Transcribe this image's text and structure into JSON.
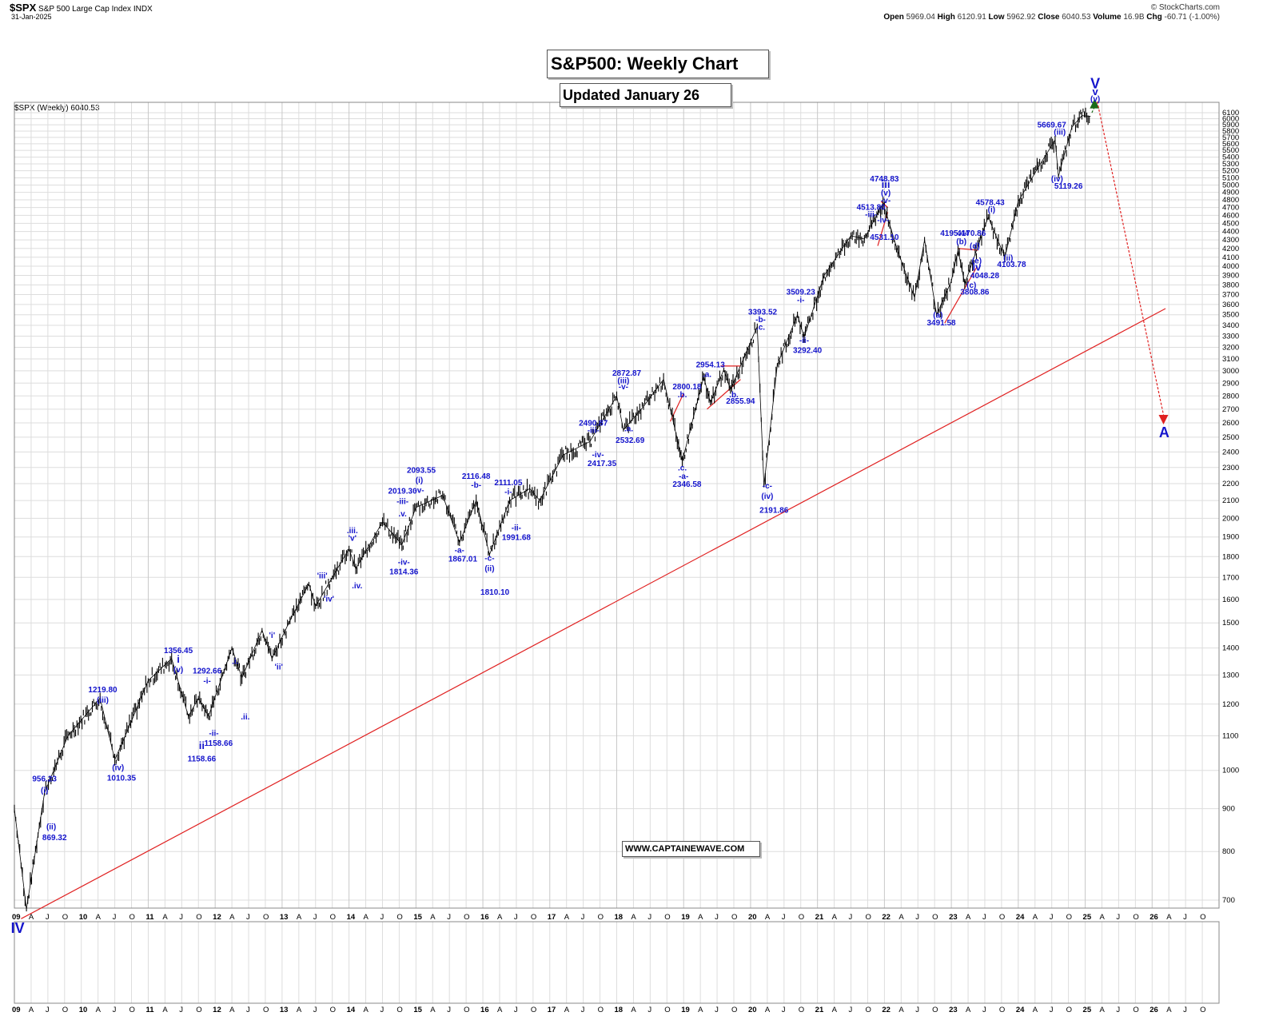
{
  "header": {
    "symbol": "$SPX",
    "name": "S&P 500 Large Cap Index",
    "exchange": "INDX",
    "date": "31-Jan-2025",
    "watermark": "© StockCharts.com",
    "quote": [
      {
        "label": "Open",
        "value": "5969.04"
      },
      {
        "label": "High",
        "value": "6120.91"
      },
      {
        "label": "Low",
        "value": "5962.92"
      },
      {
        "label": "Close",
        "value": "6040.53"
      },
      {
        "label": "Volume",
        "value": "16.9B"
      },
      {
        "label": "Chg",
        "value": "-60.71 (-1.00%)"
      }
    ],
    "series_label": "$SPX (Weekly) 6040.53"
  },
  "boxes": {
    "title": "S&P500: Weekly Chart",
    "updated": "Updated January 26",
    "website": "WWW.CAPTAINEWAVE.COM"
  },
  "colors": {
    "price": "#000000",
    "wave_label": "#1414cc",
    "trendline": "#e02020",
    "arrow_up": "#1a6b1a",
    "arrow_down": "#e02020",
    "grid": "#dddddd"
  },
  "chart_data": {
    "type": "line",
    "x_scale": "date",
    "y_scale": "log",
    "ylim": [
      650,
      6200
    ],
    "y_ticks": [
      700,
      800,
      900,
      1000,
      1100,
      1200,
      1300,
      1400,
      1500,
      1600,
      1700,
      1800,
      1900,
      2000,
      2100,
      2200,
      2300,
      2400,
      2500,
      2600,
      2700,
      2800,
      2900,
      3000,
      3100,
      3200,
      3300,
      3400,
      3500,
      3600,
      3700,
      3800,
      3900,
      4000,
      4100,
      4200,
      4300,
      4400,
      4500,
      4600,
      4700,
      4800,
      4900,
      5000,
      5100,
      5200,
      5300,
      5400,
      5500,
      5600,
      5700,
      5800,
      5900,
      6000,
      6100
    ],
    "x_ticks": [
      "09",
      "A",
      "J",
      "O",
      "10",
      "A",
      "J",
      "O",
      "11",
      "A",
      "J",
      "O",
      "12",
      "A",
      "J",
      "O",
      "13",
      "A",
      "J",
      "O",
      "14",
      "A",
      "J",
      "O",
      "15",
      "A",
      "J",
      "O",
      "16",
      "A",
      "J",
      "O",
      "17",
      "A",
      "J",
      "O",
      "18",
      "A",
      "J",
      "O",
      "19",
      "A",
      "J",
      "O",
      "20",
      "A",
      "J",
      "O",
      "21",
      "A",
      "J",
      "O",
      "22",
      "A",
      "J",
      "O",
      "23",
      "A",
      "J",
      "O",
      "24",
      "A",
      "J",
      "O",
      "25",
      "A",
      "J",
      "O",
      "26",
      "A",
      "J",
      "O"
    ],
    "series": [
      {
        "values": [
          [
            "2009.00",
            900
          ],
          [
            "2009.18",
            683
          ],
          [
            "2009.45",
            940
          ],
          [
            "2009.80",
            1100
          ],
          [
            "2010.28",
            1220
          ],
          [
            "2010.50",
            1030
          ],
          [
            "2010.70",
            1120
          ],
          [
            "2011.00",
            1280
          ],
          [
            "2011.35",
            1360
          ],
          [
            "2011.60",
            1160
          ],
          [
            "2011.75",
            1220
          ],
          [
            "2011.90",
            1160
          ],
          [
            "2012.25",
            1400
          ],
          [
            "2012.40",
            1290
          ],
          [
            "2012.70",
            1470
          ],
          [
            "2012.85",
            1360
          ],
          [
            "2013.10",
            1500
          ],
          [
            "2013.40",
            1670
          ],
          [
            "2013.50",
            1570
          ],
          [
            "2014.00",
            1840
          ],
          [
            "2014.10",
            1740
          ],
          [
            "2014.50",
            1980
          ],
          [
            "2014.79",
            1860
          ],
          [
            "2015.00",
            2060
          ],
          [
            "2015.40",
            2130
          ],
          [
            "2015.65",
            1870
          ],
          [
            "2015.90",
            2100
          ],
          [
            "2016.10",
            1810
          ],
          [
            "2016.40",
            2100
          ],
          [
            "2016.70",
            2170
          ],
          [
            "2016.85",
            2100
          ],
          [
            "2017.20",
            2380
          ],
          [
            "2017.60",
            2470
          ],
          [
            "2018.00",
            2800
          ],
          [
            "2018.10",
            2550
          ],
          [
            "2018.40",
            2720
          ],
          [
            "2018.70",
            2930
          ],
          [
            "2018.98",
            2340
          ],
          [
            "2019.30",
            2950
          ],
          [
            "2019.40",
            2750
          ],
          [
            "2019.60",
            3010
          ],
          [
            "2019.70",
            2850
          ],
          [
            "2020.10",
            3390
          ],
          [
            "2020.20",
            2190
          ],
          [
            "2020.40",
            3050
          ],
          [
            "2020.70",
            3500
          ],
          [
            "2020.80",
            3290
          ],
          [
            "2021.10",
            3900
          ],
          [
            "2021.50",
            4350
          ],
          [
            "2021.70",
            4310
          ],
          [
            "2021.98",
            4760
          ],
          [
            "2022.20",
            4170
          ],
          [
            "2022.45",
            3670
          ],
          [
            "2022.60",
            4300
          ],
          [
            "2022.78",
            3500
          ],
          [
            "2023.00",
            3840
          ],
          [
            "2023.10",
            4180
          ],
          [
            "2023.20",
            3810
          ],
          [
            "2023.55",
            4580
          ],
          [
            "2023.80",
            4100
          ],
          [
            "2024.00",
            4780
          ],
          [
            "2024.30",
            5250
          ],
          [
            "2024.55",
            5660
          ],
          [
            "2024.60",
            5120
          ],
          [
            "2024.80",
            5860
          ],
          [
            "2024.95",
            6050
          ],
          [
            "2025.08",
            6040
          ]
        ]
      }
    ],
    "annotations": [
      {
        "text": "IV",
        "x": 2009.05,
        "y": 640
      },
      {
        "text": "956.23",
        "x": 2009.45,
        "y": 970
      },
      {
        "text": "(i)",
        "x": 2009.45,
        "y": 940
      },
      {
        "text": "(ii)",
        "x": 2009.55,
        "y": 850
      },
      {
        "text": "869.32",
        "x": 2009.6,
        "y": 825
      },
      {
        "text": "1219.80",
        "x": 2010.32,
        "y": 1240
      },
      {
        "text": "(iii)",
        "x": 2010.32,
        "y": 1205
      },
      {
        "text": "(iv)",
        "x": 2010.55,
        "y": 1000
      },
      {
        "text": "1010.35",
        "x": 2010.6,
        "y": 972
      },
      {
        "text": "1356.45",
        "x": 2011.45,
        "y": 1380
      },
      {
        "text": "i",
        "x": 2011.45,
        "y": 1345
      },
      {
        "text": "(v)",
        "x": 2011.45,
        "y": 1310
      },
      {
        "text": "1292.66",
        "x": 2011.88,
        "y": 1305
      },
      {
        "text": "-i-",
        "x": 2011.88,
        "y": 1270
      },
      {
        "text": "-ii-",
        "x": 2011.98,
        "y": 1100
      },
      {
        "text": "1158.66",
        "x": 2012.05,
        "y": 1070
      },
      {
        "text": "ii",
        "x": 2011.8,
        "y": 1060
      },
      {
        "text": "1158.66",
        "x": 2011.8,
        "y": 1025
      },
      {
        "text": ".i.",
        "x": 2012.3,
        "y": 1340
      },
      {
        "text": ".ii.",
        "x": 2012.45,
        "y": 1150
      },
      {
        "text": "'i'",
        "x": 2012.85,
        "y": 1440
      },
      {
        "text": "'ii'",
        "x": 2012.95,
        "y": 1320
      },
      {
        "text": "'iii'",
        "x": 2013.6,
        "y": 1695
      },
      {
        "text": "'iv'",
        "x": 2013.7,
        "y": 1590
      },
      {
        "text": ".iii.",
        "x": 2014.05,
        "y": 1920
      },
      {
        "text": "'v'",
        "x": 2014.05,
        "y": 1880
      },
      {
        "text": ".iv.",
        "x": 2014.12,
        "y": 1650
      },
      {
        "text": "2019.30",
        "x": 2014.8,
        "y": 2140
      },
      {
        "text": "-iii-",
        "x": 2014.8,
        "y": 2080
      },
      {
        "text": ".v.",
        "x": 2014.8,
        "y": 2010
      },
      {
        "text": "-iv-",
        "x": 2014.82,
        "y": 1760
      },
      {
        "text": "1814.36",
        "x": 2014.82,
        "y": 1715
      },
      {
        "text": "2093.55",
        "x": 2015.08,
        "y": 2265
      },
      {
        "text": "(i)",
        "x": 2015.05,
        "y": 2205
      },
      {
        "text": "-v-",
        "x": 2015.05,
        "y": 2145
      },
      {
        "text": "-a-",
        "x": 2015.65,
        "y": 1820
      },
      {
        "text": "1867.01",
        "x": 2015.7,
        "y": 1775
      },
      {
        "text": "2116.48",
        "x": 2015.9,
        "y": 2230
      },
      {
        "text": "-b-",
        "x": 2015.9,
        "y": 2175
      },
      {
        "text": "2111.05",
        "x": 2016.38,
        "y": 2190
      },
      {
        "text": "-i-",
        "x": 2016.38,
        "y": 2135
      },
      {
        "text": "-c-",
        "x": 2016.1,
        "y": 1780
      },
      {
        "text": "(ii)",
        "x": 2016.1,
        "y": 1730
      },
      {
        "text": "1810.10",
        "x": 2016.18,
        "y": 1620
      },
      {
        "text": "-ii-",
        "x": 2016.5,
        "y": 1935
      },
      {
        "text": "1991.68",
        "x": 2016.5,
        "y": 1885
      },
      {
        "text": "2490.87",
        "x": 2017.65,
        "y": 2580
      },
      {
        "text": "-iii-",
        "x": 2017.65,
        "y": 2530
      },
      {
        "text": "-iv-",
        "x": 2017.72,
        "y": 2365
      },
      {
        "text": "2417.35",
        "x": 2017.78,
        "y": 2310
      },
      {
        "text": "2872.87",
        "x": 2018.15,
        "y": 2960
      },
      {
        "text": "(iii)",
        "x": 2018.1,
        "y": 2900
      },
      {
        "text": "-v-",
        "x": 2018.1,
        "y": 2850
      },
      {
        "text": ".a.",
        "x": 2018.18,
        "y": 2540
      },
      {
        "text": "2532.69",
        "x": 2018.2,
        "y": 2460
      },
      {
        "text": "2800.18",
        "x": 2019.05,
        "y": 2850
      },
      {
        "text": ".b.",
        "x": 2018.98,
        "y": 2790
      },
      {
        "text": ".c.",
        "x": 2018.98,
        "y": 2280
      },
      {
        "text": "-a-",
        "x": 2019.0,
        "y": 2230
      },
      {
        "text": "2346.58",
        "x": 2019.05,
        "y": 2180
      },
      {
        "text": "2954.13",
        "x": 2019.4,
        "y": 3030
      },
      {
        "text": ".a.",
        "x": 2019.35,
        "y": 2950
      },
      {
        "text": ".b.",
        "x": 2019.75,
        "y": 2790
      },
      {
        "text": "2855.94",
        "x": 2019.85,
        "y": 2740
      },
      {
        "text": "3393.52",
        "x": 2020.18,
        "y": 3500
      },
      {
        "text": "-b-",
        "x": 2020.15,
        "y": 3430
      },
      {
        "text": ".c.",
        "x": 2020.15,
        "y": 3360
      },
      {
        "text": "-c-",
        "x": 2020.25,
        "y": 2170
      },
      {
        "text": "(iv)",
        "x": 2020.25,
        "y": 2110
      },
      {
        "text": "2191.86",
        "x": 2020.35,
        "y": 2030
      },
      {
        "text": "3509.23",
        "x": 2020.75,
        "y": 3700
      },
      {
        "text": "-i-",
        "x": 2020.75,
        "y": 3620
      },
      {
        "text": "-ii-",
        "x": 2020.8,
        "y": 3240
      },
      {
        "text": "3292.40",
        "x": 2020.85,
        "y": 3150
      },
      {
        "text": "4513.80",
        "x": 2021.8,
        "y": 4670
      },
      {
        "text": "-iii-",
        "x": 2021.8,
        "y": 4580
      },
      {
        "text": "-iv-",
        "x": 2021.98,
        "y": 4510
      },
      {
        "text": "4531.10",
        "x": 2022.0,
        "y": 4300
      },
      {
        "text": "4748.83",
        "x": 2022.0,
        "y": 5050
      },
      {
        "text": "iii",
        "x": 2022.02,
        "y": 4960
      },
      {
        "text": "(v)",
        "x": 2022.02,
        "y": 4860
      },
      {
        "text": "-v-",
        "x": 2022.02,
        "y": 4760
      },
      {
        "text": "4195.44",
        "x": 2023.05,
        "y": 4350
      },
      {
        "text": "(b)",
        "x": 2023.15,
        "y": 4250
      },
      {
        "text": "4170.86",
        "x": 2023.3,
        "y": 4350
      },
      {
        "text": "(d)",
        "x": 2023.35,
        "y": 4200
      },
      {
        "text": "(e)",
        "x": 2023.38,
        "y": 4030
      },
      {
        "text": "iv",
        "x": 2023.38,
        "y": 3950
      },
      {
        "text": "4048.28",
        "x": 2023.5,
        "y": 3870
      },
      {
        "text": "(c)",
        "x": 2023.3,
        "y": 3770
      },
      {
        "text": "3808.86",
        "x": 2023.35,
        "y": 3700
      },
      {
        "text": "(a)",
        "x": 2022.8,
        "y": 3470
      },
      {
        "text": "3491.58",
        "x": 2022.85,
        "y": 3400
      },
      {
        "text": "4578.43",
        "x": 2023.58,
        "y": 4730
      },
      {
        "text": "(i)",
        "x": 2023.6,
        "y": 4640
      },
      {
        "text": "(ii)",
        "x": 2023.85,
        "y": 4060
      },
      {
        "text": "4103.78",
        "x": 2023.9,
        "y": 3990
      },
      {
        "text": "5669.67",
        "x": 2024.5,
        "y": 5860
      },
      {
        "text": "(iii)",
        "x": 2024.62,
        "y": 5740
      },
      {
        "text": "(iv)",
        "x": 2024.58,
        "y": 5050
      },
      {
        "text": "5119.26",
        "x": 2024.75,
        "y": 4950
      },
      {
        "text": "V",
        "x": 2025.15,
        "y": 6520
      },
      {
        "text": "v",
        "x": 2025.15,
        "y": 6400
      },
      {
        "text": "(v)",
        "x": 2025.15,
        "y": 6290
      },
      {
        "text": "A",
        "x": 2026.18,
        "y": 2500
      }
    ],
    "trendline": {
      "from": [
        2009.1,
        665
      ],
      "to": [
        2026.2,
        3560
      ]
    },
    "wedges": [
      {
        "from": [
          2018.8,
          2610
        ],
        "to": [
          2019.0,
          2820
        ]
      },
      {
        "from": [
          2019.35,
          2700
        ],
        "to": [
          2019.85,
          2930
        ]
      },
      {
        "from": [
          2019.55,
          3040
        ],
        "to": [
          2019.85,
          3040
        ]
      },
      {
        "from": [
          2021.9,
          4230
        ],
        "to": [
          2022.05,
          4640
        ]
      },
      {
        "from": [
          2021.95,
          4780
        ],
        "to": [
          2022.05,
          4700
        ]
      },
      {
        "from": [
          2022.9,
          3420
        ],
        "to": [
          2023.38,
          3990
        ]
      },
      {
        "from": [
          2023.1,
          4200
        ],
        "to": [
          2023.4,
          4180
        ]
      }
    ],
    "forecast_up": {
      "from": [
        2025.1,
        6100
      ],
      "to": [
        2025.14,
        6310
      ]
    },
    "forecast_down": {
      "from": [
        2025.18,
        6290
      ],
      "to": [
        2026.17,
        2600
      ]
    }
  }
}
